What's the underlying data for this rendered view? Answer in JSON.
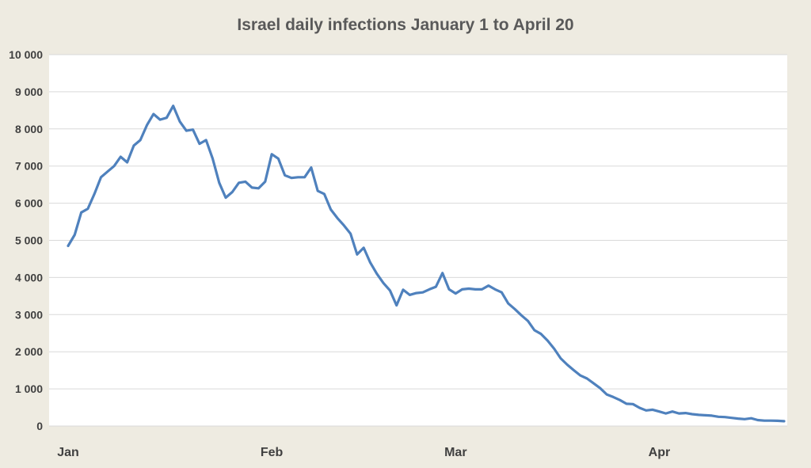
{
  "chart_data": {
    "type": "line",
    "title": "Israel daily infections  January 1 to April 20",
    "xlabel": "",
    "ylabel": "",
    "x_start": "Jan 1",
    "x_end": "Apr 20",
    "ylim": [
      0,
      10000
    ],
    "yticks": [
      0,
      1000,
      2000,
      3000,
      4000,
      5000,
      6000,
      7000,
      8000,
      9000,
      10000
    ],
    "ytick_labels": [
      "0",
      "1 000",
      "2 000",
      "3 000",
      "4 000",
      "5 000",
      "6 000",
      "7 000",
      "8 000",
      "9 000",
      "10 000"
    ],
    "xtick_labels": [
      {
        "label": "Jan",
        "day": 1
      },
      {
        "label": "Feb",
        "day": 32
      },
      {
        "label": "Mar",
        "day": 60
      },
      {
        "label": "Apr",
        "day": 91
      }
    ],
    "grid": true,
    "legend": "none",
    "series": [
      {
        "color": "#4f81bd",
        "values": [
          4850,
          5150,
          5750,
          5850,
          6250,
          6700,
          6850,
          7000,
          7250,
          7100,
          7550,
          7700,
          8100,
          8400,
          8250,
          8300,
          8620,
          8200,
          7950,
          7980,
          7600,
          7700,
          7200,
          6550,
          6150,
          6300,
          6550,
          6580,
          6420,
          6400,
          6580,
          7320,
          7200,
          6750,
          6680,
          6700,
          6700,
          6960,
          6330,
          6250,
          5830,
          5600,
          5400,
          5180,
          4620,
          4800,
          4400,
          4100,
          3850,
          3650,
          3250,
          3670,
          3530,
          3580,
          3600,
          3680,
          3750,
          4120,
          3680,
          3570,
          3680,
          3700,
          3680,
          3680,
          3780,
          3680,
          3600,
          3300,
          3150,
          2980,
          2830,
          2580,
          2480,
          2300,
          2080,
          1820,
          1650,
          1500,
          1360,
          1280,
          1150,
          1020,
          850,
          780,
          700,
          600,
          590,
          490,
          420,
          440,
          390,
          340,
          390,
          340,
          350,
          320,
          300,
          290,
          280,
          250,
          240,
          220,
          200,
          185,
          210,
          160,
          145,
          145,
          140,
          130
        ]
      }
    ]
  }
}
